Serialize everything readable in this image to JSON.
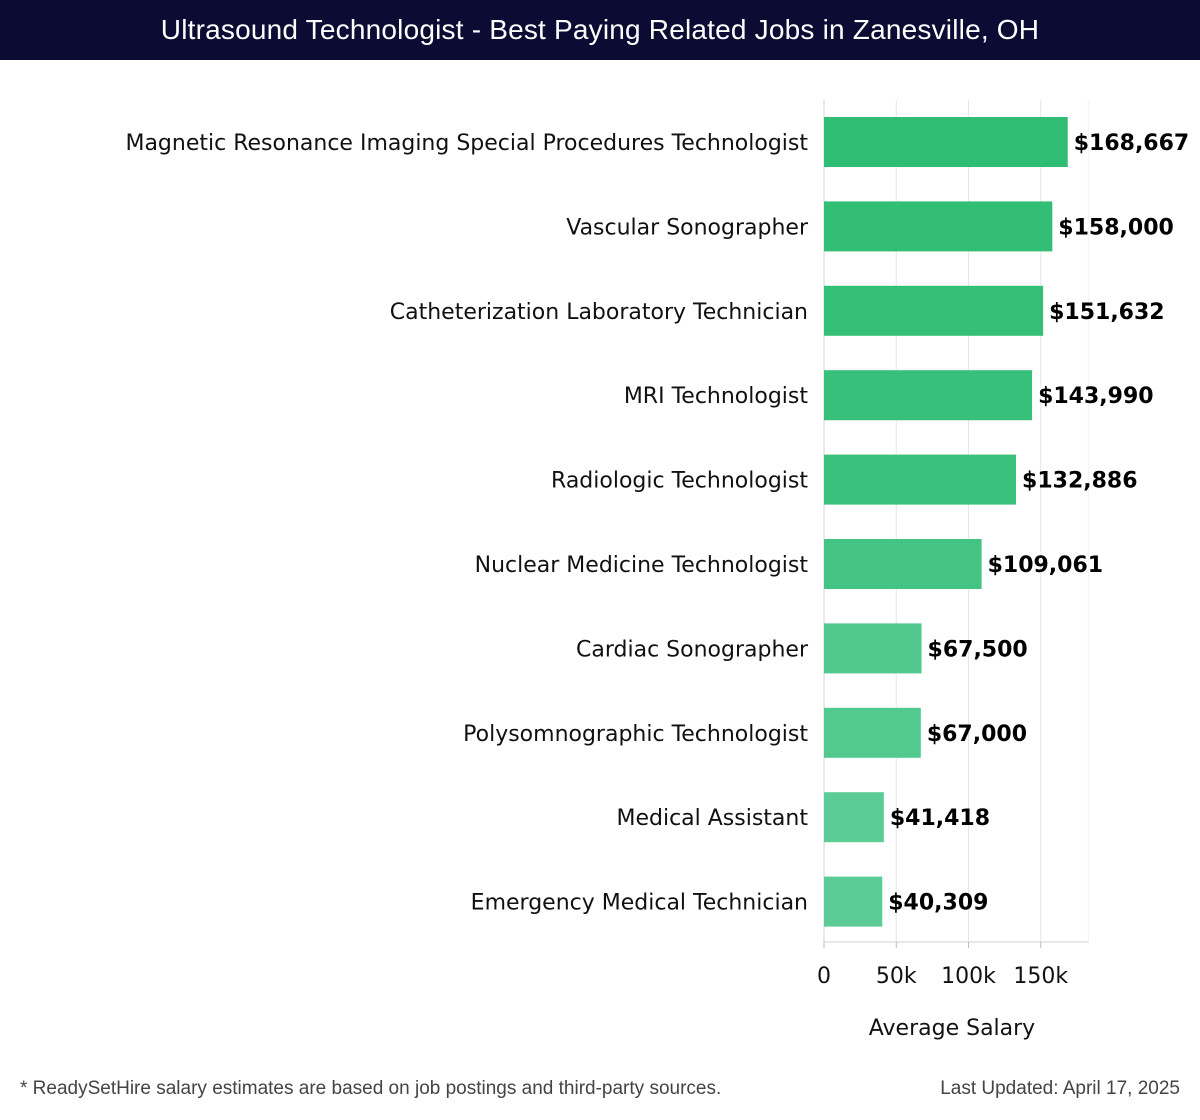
{
  "header": {
    "title": "Ultrasound Technologist - Best Paying Related Jobs in Zanesville, OH"
  },
  "chart_data": {
    "type": "bar",
    "orientation": "horizontal",
    "title": "Ultrasound Technologist - Best Paying Related Jobs in Zanesville, OH",
    "xlabel": "Average Salary",
    "ylabel": "",
    "xlim": [
      0,
      185000
    ],
    "x_ticks": [
      0,
      50000,
      100000,
      150000
    ],
    "x_tick_labels": [
      "0",
      "50k",
      "100k",
      "150k"
    ],
    "grid": "vertical",
    "categories": [
      "Magnetic Resonance Imaging Special Procedures Technologist",
      "Vascular Sonographer",
      "Catheterization Laboratory Technician",
      "MRI Technologist",
      "Radiologic Technologist",
      "Nuclear Medicine Technologist",
      "Cardiac Sonographer",
      "Polysomnographic Technologist",
      "Medical Assistant",
      "Emergency Medical Technician"
    ],
    "values": [
      168667,
      158000,
      151632,
      143990,
      132886,
      109061,
      67500,
      67000,
      41418,
      40309
    ],
    "value_labels": [
      "$168,667",
      "$158,000",
      "$151,632",
      "$143,990",
      "$132,886",
      "$109,061",
      "$67,500",
      "$67,000",
      "$41,418",
      "$40,309"
    ],
    "colors": {
      "bar_high": "#2ebd72",
      "bar_low": "#5bcc95",
      "grid": "#e6e6e6"
    }
  },
  "footer": {
    "note": "* ReadySetHire salary estimates are based on job postings and third-party sources.",
    "updated": "Last Updated: April 17, 2025"
  }
}
